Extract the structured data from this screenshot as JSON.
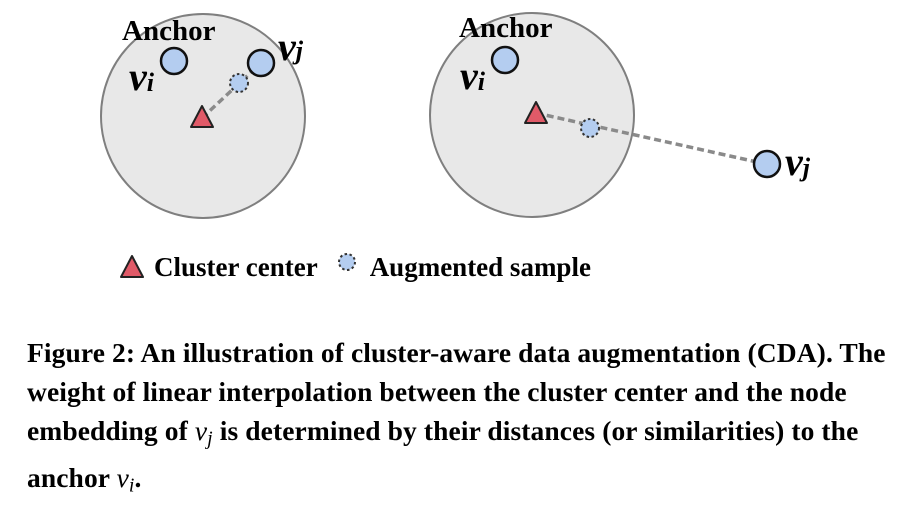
{
  "panels": [
    {
      "anchor_label": "Anchor",
      "vi_label": "v",
      "vi_sub": "i",
      "vj_label": "v",
      "vj_sub": "j"
    },
    {
      "anchor_label": "Anchor",
      "vi_label": "v",
      "vi_sub": "i",
      "vj_label": "v",
      "vj_sub": "j"
    }
  ],
  "legend": {
    "cluster_center": "Cluster center",
    "augmented_sample": "Augmented sample"
  },
  "caption": {
    "part1": "Figure 2: An illustration of cluster-aware data augmentation (CDA). The weight of linear interpolation between the cluster center and the node embedding of ",
    "math1_base": "v",
    "math1_sub": "j",
    "part2": " is determined by their distances (or similarities) to the anchor ",
    "math2_base": "v",
    "math2_sub": "i",
    "part3": "."
  },
  "colors": {
    "cluster_fill": "#e8e8e8",
    "cluster_stroke": "#7f7f7f",
    "node_fill": "#b4cdf0",
    "center_fill": "#e05a68",
    "line": "#8a8a8a"
  }
}
